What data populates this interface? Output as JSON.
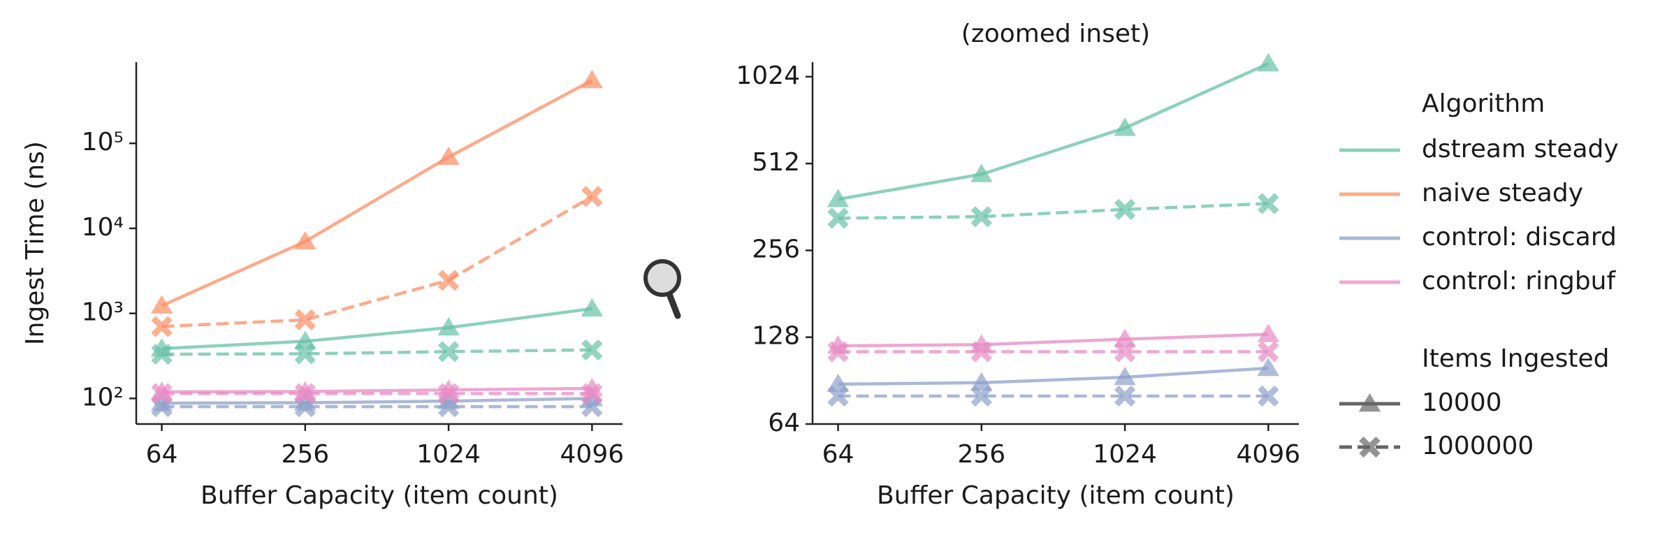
{
  "chart_data": [
    {
      "type": "line",
      "title": null,
      "xlabel": "Buffer Capacity (item count)",
      "ylabel": "Ingest Time (ns)",
      "x": [
        64,
        256,
        1024,
        4096
      ],
      "xscale": "log",
      "yscale": "log",
      "xlim": [
        50,
        5500
      ],
      "ylim": [
        50,
        900000
      ],
      "xticks": [
        64,
        256,
        1024,
        4096
      ],
      "yticks": [
        {
          "value": 100,
          "label": "10²"
        },
        {
          "value": 1000,
          "label": "10³"
        },
        {
          "value": 10000,
          "label": "10⁴"
        },
        {
          "value": 100000,
          "label": "10⁵"
        }
      ],
      "series": [
        {
          "color": "#66c2a5",
          "marker": "triangle",
          "dashed": false,
          "values": [
            385,
            470,
            680,
            1137
          ]
        },
        {
          "color": "#66c2a5",
          "marker": "x",
          "dashed": true,
          "values": [
            331,
            335,
            355,
            372
          ]
        },
        {
          "color": "#fc8d62",
          "marker": "triangle",
          "dashed": false,
          "values": [
            1230,
            7000,
            69000,
            550000
          ]
        },
        {
          "color": "#fc8d62",
          "marker": "x",
          "dashed": true,
          "values": [
            700,
            840,
            2450,
            23700
          ]
        },
        {
          "color": "#8da0cb",
          "marker": "triangle",
          "dashed": false,
          "values": [
            88,
            89,
            93,
            100
          ]
        },
        {
          "color": "#8da0cb",
          "marker": "x",
          "dashed": true,
          "values": [
            80,
            80,
            80,
            80
          ]
        },
        {
          "color": "#e78ac3",
          "marker": "triangle",
          "dashed": false,
          "values": [
            119.5,
            120.6,
            126,
            131
          ]
        },
        {
          "color": "#e78ac3",
          "marker": "x",
          "dashed": true,
          "values": [
            114,
            114,
            114,
            114
          ]
        }
      ]
    },
    {
      "type": "line",
      "title": "(zoomed inset)",
      "xlabel": "Buffer Capacity (item count)",
      "ylabel": null,
      "x": [
        64,
        256,
        1024,
        4096
      ],
      "xscale": "log",
      "yscale": "log",
      "xlim": [
        50,
        5500
      ],
      "ylim": [
        64,
        1150
      ],
      "xticks": [
        64,
        256,
        1024,
        4096
      ],
      "yticks": [
        64,
        128,
        256,
        512,
        1024
      ],
      "series": [
        {
          "color": "#66c2a5",
          "marker": "triangle",
          "dashed": false,
          "values": [
            385,
            470,
            680,
            1137
          ]
        },
        {
          "color": "#66c2a5",
          "marker": "x",
          "dashed": true,
          "values": [
            331,
            335,
            355,
            372
          ]
        },
        {
          "color": "#8da0cb",
          "marker": "triangle",
          "dashed": false,
          "values": [
            88,
            89,
            93,
            100
          ]
        },
        {
          "color": "#8da0cb",
          "marker": "x",
          "dashed": true,
          "values": [
            80,
            80,
            80,
            80
          ]
        },
        {
          "color": "#e78ac3",
          "marker": "triangle",
          "dashed": false,
          "values": [
            119.5,
            120.6,
            126,
            131
          ]
        },
        {
          "color": "#e78ac3",
          "marker": "x",
          "dashed": true,
          "values": [
            114,
            114,
            114,
            114
          ]
        }
      ]
    }
  ],
  "legend": {
    "title": "Algorithm",
    "entries": [
      {
        "name": "dstream steady",
        "color": "#66c2a5"
      },
      {
        "name": "naive steady",
        "color": "#fc8d62"
      },
      {
        "name": "control: discard",
        "color": "#8da0cb"
      },
      {
        "name": "control: ringbuf",
        "color": "#e78ac3"
      }
    ],
    "style_title": "Items Ingested",
    "styles": [
      {
        "name": "10000",
        "marker": "triangle",
        "dashed": false,
        "color": "#666666"
      },
      {
        "name": "1000000",
        "marker": "x",
        "dashed": true,
        "color": "#666666"
      }
    ]
  }
}
